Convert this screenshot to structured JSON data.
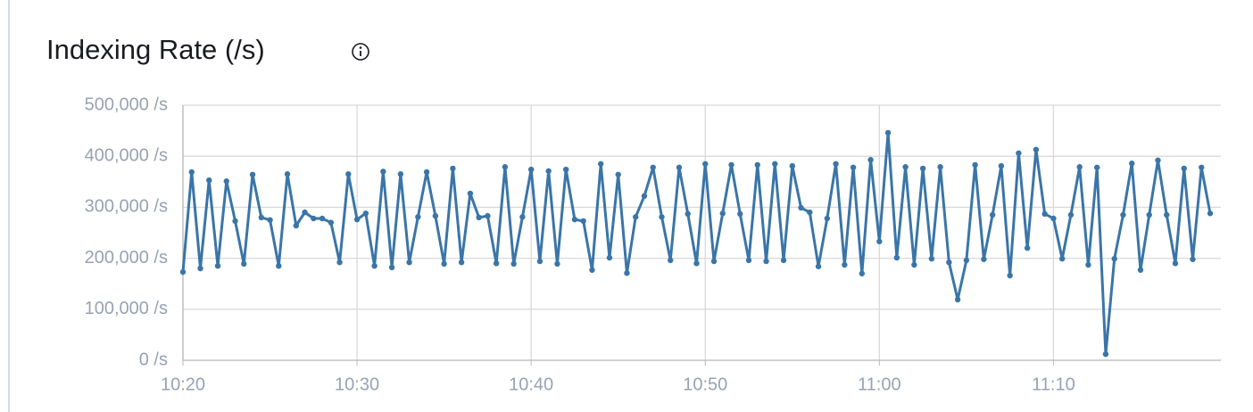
{
  "chart_data": {
    "type": "line",
    "title": "Indexing Rate (/s)",
    "categories": [
      "10:20",
      null,
      null,
      null,
      null,
      null,
      null,
      null,
      null,
      null,
      null,
      null,
      null,
      null,
      null,
      null,
      null,
      null,
      null,
      null,
      "10:30",
      null,
      null,
      null,
      null,
      null,
      null,
      null,
      null,
      null,
      null,
      null,
      null,
      null,
      null,
      null,
      null,
      null,
      null,
      null,
      "10:40",
      null,
      null,
      null,
      null,
      null,
      null,
      null,
      null,
      null,
      null,
      null,
      null,
      null,
      null,
      null,
      null,
      null,
      null,
      null,
      "10:50",
      null,
      null,
      null,
      null,
      null,
      null,
      null,
      null,
      null,
      null,
      null,
      null,
      null,
      null,
      null,
      null,
      null,
      null,
      null,
      "11:00",
      null,
      null,
      null,
      null,
      null,
      null,
      null,
      null,
      null,
      null,
      null,
      null,
      null,
      null,
      null,
      null,
      null,
      null,
      null,
      "11:10",
      null,
      null,
      null,
      null,
      null,
      null,
      null,
      null,
      null,
      null,
      null,
      null,
      null,
      null,
      null,
      null,
      null,
      null
    ],
    "values": [
      173000,
      369000,
      180000,
      353000,
      185000,
      351000,
      273000,
      189000,
      364000,
      280000,
      275000,
      185000,
      365000,
      264000,
      290000,
      278000,
      278000,
      270000,
      192000,
      365000,
      276000,
      288000,
      185000,
      370000,
      182000,
      365000,
      192000,
      281000,
      369000,
      283000,
      189000,
      376000,
      192000,
      327000,
      280000,
      283000,
      190000,
      379000,
      189000,
      281000,
      374000,
      194000,
      371000,
      189000,
      374000,
      276000,
      273000,
      177000,
      385000,
      201000,
      364000,
      171000,
      281000,
      322000,
      378000,
      281000,
      196000,
      378000,
      287000,
      190000,
      385000,
      194000,
      288000,
      383000,
      287000,
      196000,
      383000,
      194000,
      385000,
      196000,
      381000,
      299000,
      290000,
      184000,
      278000,
      385000,
      187000,
      378000,
      170000,
      393000,
      233000,
      446000,
      201000,
      379000,
      187000,
      376000,
      199000,
      379000,
      192000,
      119000,
      196000,
      383000,
      198000,
      285000,
      381000,
      166000,
      406000,
      220000,
      413000,
      287000,
      278000,
      199000,
      285000,
      379000,
      187000,
      378000,
      12000,
      199000,
      285000,
      386000,
      177000,
      285000,
      392000,
      285000,
      190000,
      376000,
      198000,
      378000,
      288000
    ],
    "color": "#3a75a8",
    "ylim": [
      0,
      500000
    ],
    "yticks": [
      {
        "value": 0,
        "label": "0 /s"
      },
      {
        "value": 100000,
        "label": "100,000 /s"
      },
      {
        "value": 200000,
        "label": "200,000 /s"
      },
      {
        "value": 300000,
        "label": "300,000 /s"
      },
      {
        "value": 400000,
        "label": "400,000 /s"
      },
      {
        "value": 500000,
        "label": "500,000 /s"
      }
    ],
    "grid": true
  }
}
